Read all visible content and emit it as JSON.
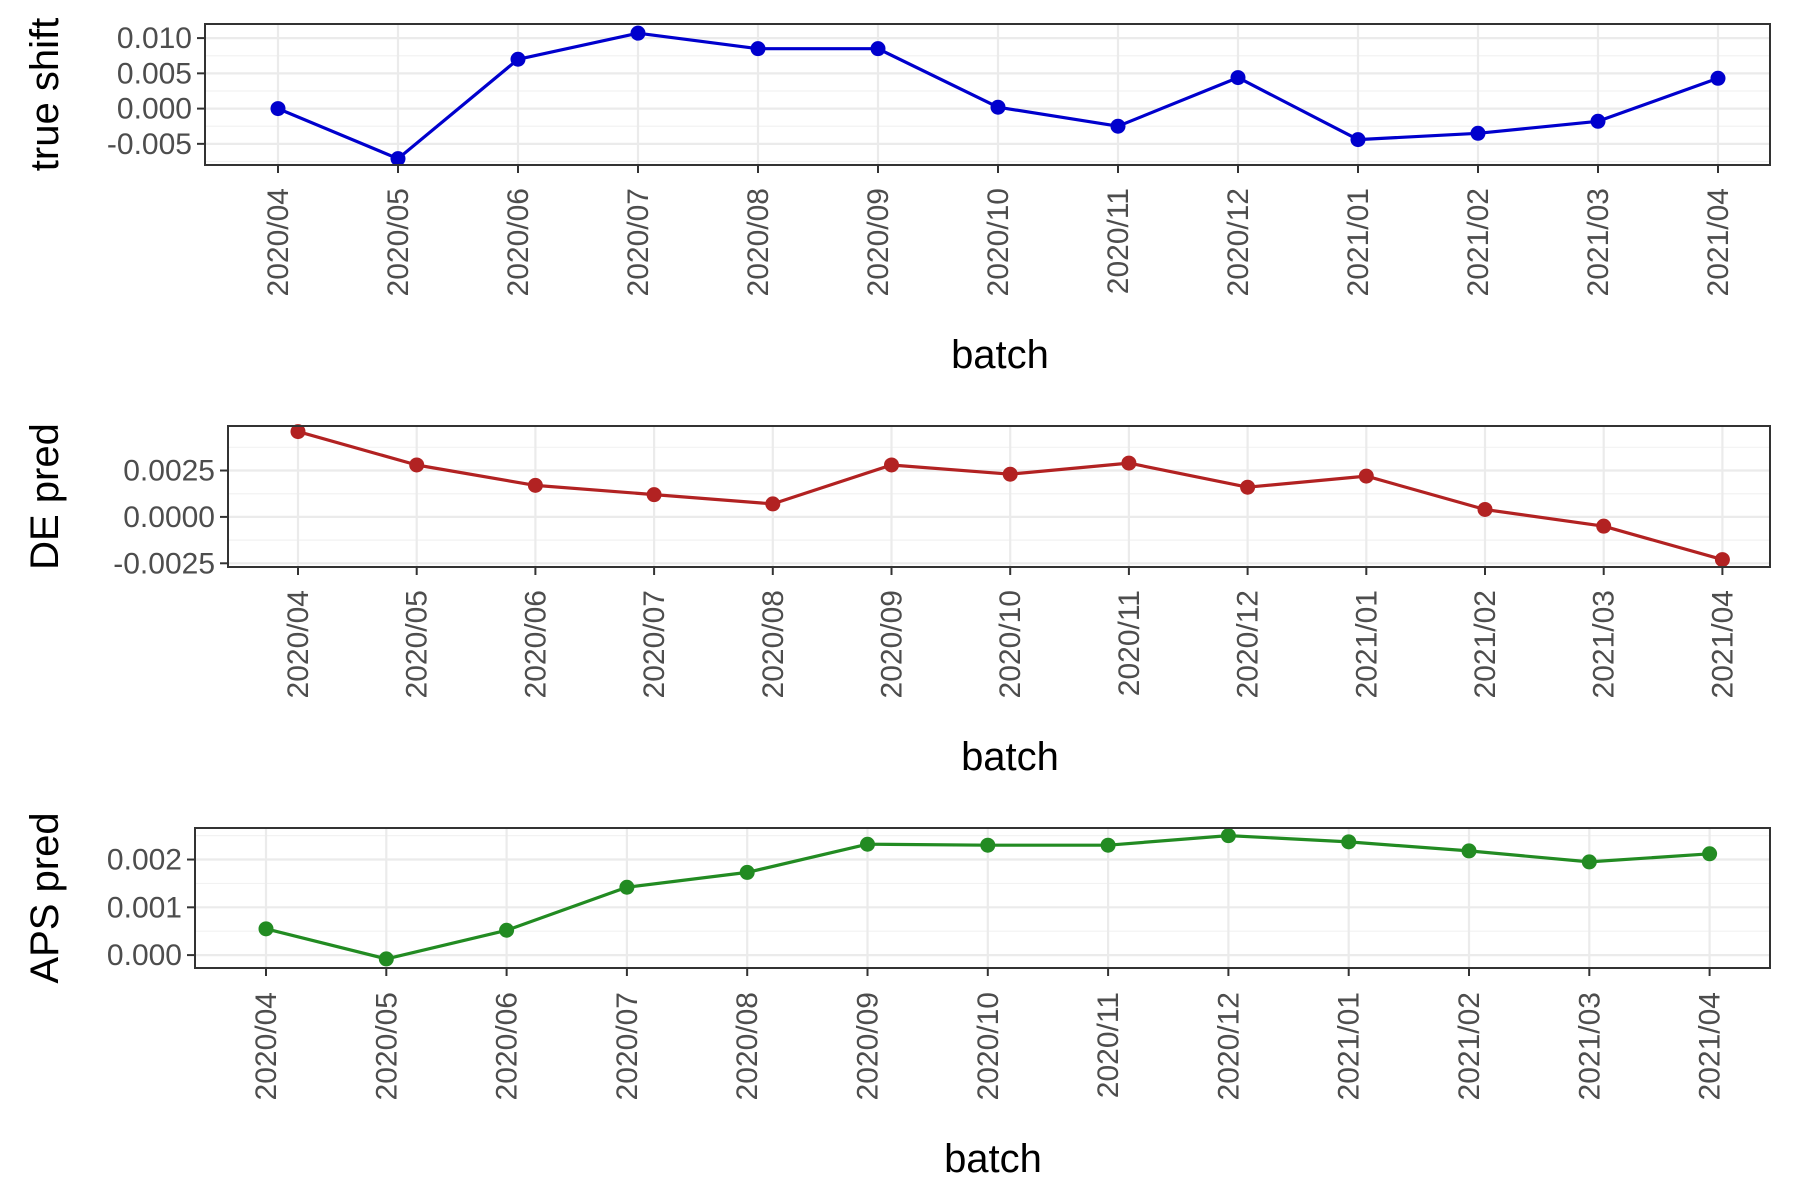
{
  "chart_data": [
    {
      "type": "line",
      "xlabel": "batch",
      "ylabel": "true shift",
      "color": "#0000CD",
      "grid": true,
      "categories": [
        "2020/04",
        "2020/05",
        "2020/06",
        "2020/07",
        "2020/08",
        "2020/09",
        "2020/10",
        "2020/11",
        "2020/12",
        "2021/01",
        "2021/02",
        "2021/03",
        "2021/04"
      ],
      "values": [
        0.0,
        -0.0071,
        0.007,
        0.0107,
        0.0085,
        0.0085,
        0.0002,
        -0.0025,
        0.0044,
        -0.0044,
        -0.0035,
        -0.0018,
        0.0043
      ],
      "ylim": [
        -0.008,
        0.012
      ],
      "yticks": [
        -0.005,
        0.0,
        0.005,
        0.01
      ],
      "yticklabels": [
        "-0.005",
        "0.000",
        "0.005",
        "0.010"
      ]
    },
    {
      "type": "line",
      "xlabel": "batch",
      "ylabel": "DE pred",
      "color": "#B22222",
      "grid": true,
      "categories": [
        "2020/04",
        "2020/05",
        "2020/06",
        "2020/07",
        "2020/08",
        "2020/09",
        "2020/10",
        "2020/11",
        "2020/12",
        "2021/01",
        "2021/02",
        "2021/03",
        "2021/04"
      ],
      "values": [
        0.0046,
        0.0028,
        0.0017,
        0.0012,
        0.0007,
        0.0028,
        0.0023,
        0.0029,
        0.0016,
        0.0022,
        0.0004,
        -0.0005,
        -0.0023
      ],
      "ylim": [
        -0.0027,
        0.0049
      ],
      "yticks": [
        -0.0025,
        0.0,
        0.0025
      ],
      "yticklabels": [
        "-0.0025",
        "0.0000",
        "0.0025"
      ]
    },
    {
      "type": "line",
      "xlabel": "batch",
      "ylabel": "APS pred",
      "color": "#228B22",
      "grid": true,
      "categories": [
        "2020/04",
        "2020/05",
        "2020/06",
        "2020/07",
        "2020/08",
        "2020/09",
        "2020/10",
        "2020/11",
        "2020/12",
        "2021/01",
        "2021/02",
        "2021/03",
        "2021/04"
      ],
      "values": [
        0.00055,
        -8e-05,
        0.00052,
        0.00142,
        0.00173,
        0.00232,
        0.0023,
        0.0023,
        0.0025,
        0.00237,
        0.00218,
        0.00195,
        0.00212
      ],
      "ylim": [
        -0.00027,
        0.00266
      ],
      "yticks": [
        0.0,
        0.001,
        0.002
      ],
      "yticklabels": [
        "0.000",
        "0.001",
        "0.002"
      ]
    }
  ]
}
